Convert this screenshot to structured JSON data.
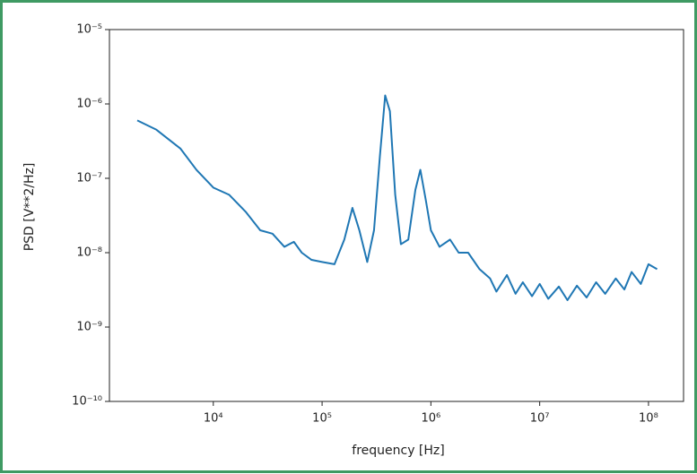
{
  "chart_data": {
    "type": "line",
    "xlabel": "frequency [Hz]",
    "ylabel": "PSD [V**2/Hz]",
    "xscale": "log",
    "yscale": "log",
    "xlim": [
      1110,
      210000000
    ],
    "ylim": [
      1e-10,
      1e-05
    ],
    "xticks": [
      {
        "value": 10000,
        "label": "10⁴"
      },
      {
        "value": 100000,
        "label": "10⁵"
      },
      {
        "value": 1000000,
        "label": "10⁶"
      },
      {
        "value": 10000000,
        "label": "10⁷"
      },
      {
        "value": 100000000,
        "label": "10⁸"
      }
    ],
    "yticks": [
      {
        "value": 1e-10,
        "label": "10⁻¹⁰"
      },
      {
        "value": 1e-09,
        "label": "10⁻⁹"
      },
      {
        "value": 1e-08,
        "label": "10⁻⁸"
      },
      {
        "value": 1e-07,
        "label": "10⁻⁷"
      },
      {
        "value": 1e-06,
        "label": "10⁻⁶"
      },
      {
        "value": 1e-05,
        "label": "10⁻⁵"
      }
    ],
    "grid": false,
    "series": [
      {
        "color": "#1f77b4",
        "x": [
          2000,
          3000,
          5000,
          7000,
          10000,
          14000,
          20000,
          27000,
          35000,
          45000,
          55000,
          65000,
          80000,
          100000,
          130000,
          160000,
          190000,
          220000,
          260000,
          300000,
          340000,
          380000,
          420000,
          470000,
          530000,
          620000,
          720000,
          800000,
          900000,
          1000000,
          1200000,
          1500000,
          1800000,
          2200000,
          2800000,
          3500000,
          4000000,
          5000000,
          6000000,
          7000000,
          8500000,
          10000000,
          12000000,
          15000000,
          18000000,
          22000000,
          27000000,
          33000000,
          40000000,
          50000000,
          60000000,
          70000000,
          85000000,
          100000000,
          120000000
        ],
        "values": [
          6e-07,
          4.5e-07,
          2.5e-07,
          1.3e-07,
          7.5e-08,
          6e-08,
          3.5e-08,
          2e-08,
          1.8e-08,
          1.2e-08,
          1.4e-08,
          1e-08,
          8e-09,
          7.5e-09,
          7e-09,
          1.5e-08,
          4e-08,
          2e-08,
          7.5e-09,
          2e-08,
          2e-07,
          1.3e-06,
          8e-07,
          6e-08,
          1.3e-08,
          1.5e-08,
          7e-08,
          1.3e-07,
          5e-08,
          2e-08,
          1.2e-08,
          1.5e-08,
          1e-08,
          1e-08,
          6e-09,
          4.5e-09,
          3e-09,
          5e-09,
          2.8e-09,
          4e-09,
          2.6e-09,
          3.8e-09,
          2.4e-09,
          3.5e-09,
          2.3e-09,
          3.6e-09,
          2.5e-09,
          4e-09,
          2.8e-09,
          4.5e-09,
          3.2e-09,
          5.5e-09,
          3.8e-09,
          7e-09,
          6e-09
        ]
      }
    ]
  }
}
